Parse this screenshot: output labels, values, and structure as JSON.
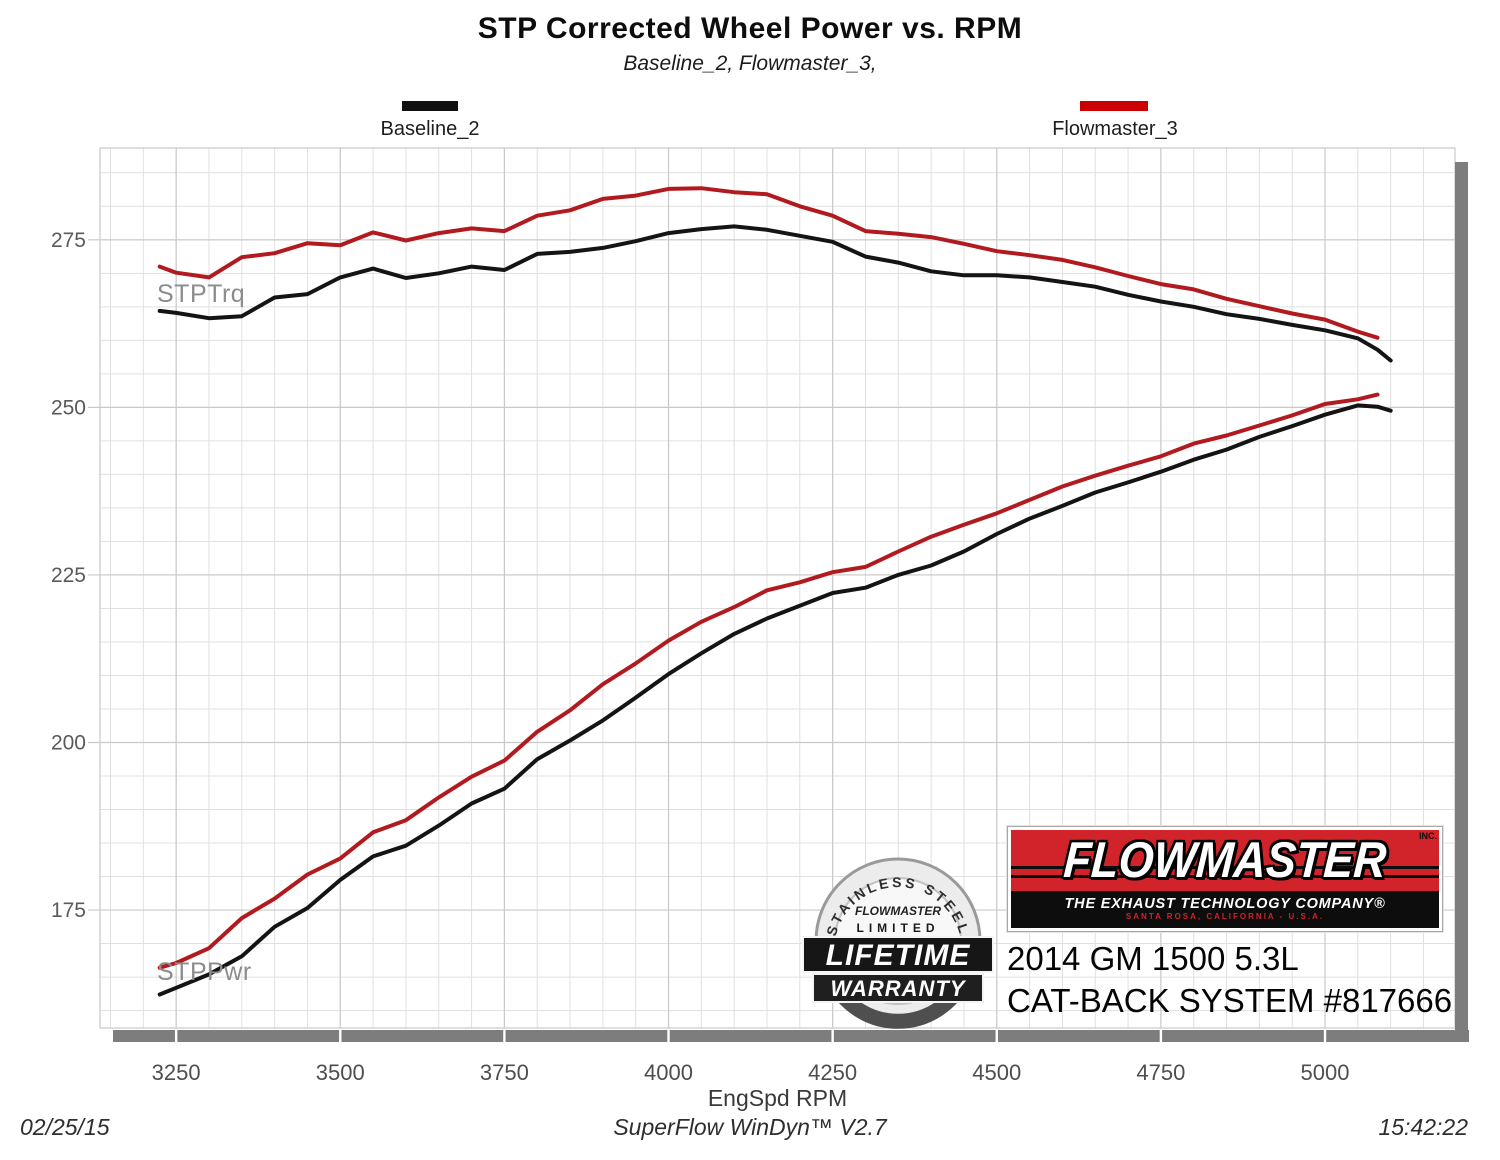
{
  "title": "STP Corrected Wheel Power vs. RPM",
  "subtitle": "Baseline_2, Flowmaster_3,",
  "legend": {
    "baseline": {
      "label": "Baseline_2",
      "color": "#111111"
    },
    "flowmaster": {
      "label": "Flowmaster_3",
      "color": "#cc0000"
    }
  },
  "curve_labels": {
    "torque": "STPTrq",
    "power": "STPPwr"
  },
  "axis": {
    "xlabel": "EngSpd RPM"
  },
  "footer": {
    "date": "02/25/15",
    "software": "SuperFlow WinDyn™ V2.7",
    "time": "15:42:22"
  },
  "branding": {
    "logo_name": "FLOWMASTER",
    "logo_inc": "INC.",
    "tagline": "THE EXHAUST TECHNOLOGY COMPANY®",
    "location": "SANTA ROSA, CALIFORNIA - U.S.A.",
    "vehicle": "2014 GM 1500 5.3L",
    "system": "CAT-BACK SYSTEM #817666"
  },
  "badge": {
    "arc_text": "STAINLESS STEEL",
    "brand": "FLOWMASTER",
    "limited": "LIMITED",
    "line1": "LIFETIME",
    "line2": "WARRANTY"
  },
  "chart_data": {
    "type": "line",
    "title": "STP Corrected Wheel Power vs. RPM",
    "xlabel": "EngSpd RPM",
    "ylabel": "",
    "xlim": [
      3134,
      5198
    ],
    "ylim": [
      157,
      289
    ],
    "x_ticks": [
      3250,
      3500,
      3750,
      4000,
      4250,
      4500,
      4750,
      5000
    ],
    "y_ticks": [
      175,
      200,
      225,
      250,
      275
    ],
    "grid": {
      "x_minor_step": 50,
      "y_minor_step": 5,
      "minor_color": "#e0e0e0",
      "major_color": "#c9c9c9"
    },
    "legend_position": "top",
    "series": [
      {
        "name": "Flowmaster_3 STPTrq",
        "role": "torque",
        "color": "#b11a1f",
        "rpm": [
          3225,
          3250,
          3300,
          3350,
          3400,
          3450,
          3500,
          3550,
          3600,
          3650,
          3700,
          3750,
          3800,
          3850,
          3900,
          3950,
          4000,
          4050,
          4100,
          4150,
          4200,
          4250,
          4300,
          4350,
          4400,
          4450,
          4500,
          4550,
          4600,
          4650,
          4700,
          4750,
          4800,
          4850,
          4900,
          4950,
          5000,
          5050,
          5080
        ],
        "values": [
          271.0,
          270.1,
          269.4,
          272.4,
          273.0,
          274.5,
          274.2,
          276.1,
          274.9,
          276.0,
          276.7,
          276.3,
          278.6,
          279.4,
          281.1,
          281.6,
          282.6,
          282.7,
          282.1,
          281.8,
          280.0,
          278.6,
          276.3,
          275.9,
          275.4,
          274.4,
          273.3,
          272.7,
          272.0,
          270.9,
          269.6,
          268.4,
          267.6,
          266.2,
          265.1,
          264.0,
          263.1,
          261.3,
          260.4
        ]
      },
      {
        "name": "Baseline_2 STPTrq",
        "role": "torque",
        "color": "#141414",
        "rpm": [
          3225,
          3250,
          3300,
          3350,
          3400,
          3450,
          3500,
          3550,
          3600,
          3650,
          3700,
          3750,
          3800,
          3850,
          3900,
          3950,
          4000,
          4050,
          4100,
          4150,
          4200,
          4250,
          4300,
          4350,
          4400,
          4450,
          4500,
          4550,
          4600,
          4650,
          4700,
          4750,
          4800,
          4850,
          4900,
          4950,
          5000,
          5050,
          5080,
          5100
        ],
        "values": [
          264.4,
          264.1,
          263.3,
          263.6,
          266.4,
          266.9,
          269.4,
          270.7,
          269.3,
          270.0,
          271.0,
          270.5,
          272.9,
          273.2,
          273.8,
          274.8,
          276.0,
          276.6,
          277.0,
          276.5,
          275.6,
          274.7,
          272.5,
          271.6,
          270.3,
          269.7,
          269.7,
          269.4,
          268.7,
          268.0,
          266.8,
          265.8,
          265.0,
          263.9,
          263.2,
          262.3,
          261.5,
          260.3,
          258.6,
          257.0
        ]
      },
      {
        "name": "Flowmaster_3 STPPwr",
        "role": "power",
        "color": "#b11a1f",
        "rpm": [
          3225,
          3250,
          3300,
          3350,
          3400,
          3450,
          3500,
          3550,
          3600,
          3650,
          3700,
          3750,
          3800,
          3850,
          3900,
          3950,
          4000,
          4050,
          4100,
          4150,
          4200,
          4250,
          4300,
          4350,
          4400,
          4450,
          4500,
          4550,
          4600,
          4650,
          4700,
          4750,
          4800,
          4850,
          4900,
          4950,
          5000,
          5050,
          5080
        ],
        "values": [
          166.4,
          167.1,
          169.3,
          173.8,
          176.7,
          180.3,
          182.7,
          186.6,
          188.4,
          191.8,
          194.9,
          197.3,
          201.6,
          204.8,
          208.7,
          211.8,
          215.2,
          218.0,
          220.2,
          222.7,
          223.9,
          225.4,
          226.2,
          228.5,
          230.7,
          232.5,
          234.2,
          236.2,
          238.2,
          239.8,
          241.3,
          242.7,
          244.6,
          245.8,
          247.3,
          248.8,
          250.5,
          251.2,
          251.9
        ]
      },
      {
        "name": "Baseline_2 STPPwr",
        "role": "power",
        "color": "#141414",
        "rpm": [
          3225,
          3250,
          3300,
          3350,
          3400,
          3450,
          3500,
          3550,
          3600,
          3650,
          3700,
          3750,
          3800,
          3850,
          3900,
          3950,
          4000,
          4050,
          4100,
          4150,
          4200,
          4250,
          4300,
          4350,
          4400,
          4450,
          4500,
          4550,
          4600,
          4650,
          4700,
          4750,
          4800,
          4850,
          4900,
          4950,
          5000,
          5050,
          5080,
          5100
        ],
        "values": [
          162.4,
          163.4,
          165.4,
          168.1,
          172.5,
          175.3,
          179.5,
          183.0,
          184.6,
          187.6,
          190.9,
          193.1,
          197.5,
          200.3,
          203.3,
          206.7,
          210.2,
          213.3,
          216.2,
          218.5,
          220.4,
          222.3,
          223.1,
          225.0,
          226.4,
          228.5,
          231.1,
          233.4,
          235.3,
          237.3,
          238.8,
          240.4,
          242.2,
          243.7,
          245.6,
          247.2,
          248.9,
          250.3,
          250.1,
          249.5
        ]
      }
    ]
  }
}
